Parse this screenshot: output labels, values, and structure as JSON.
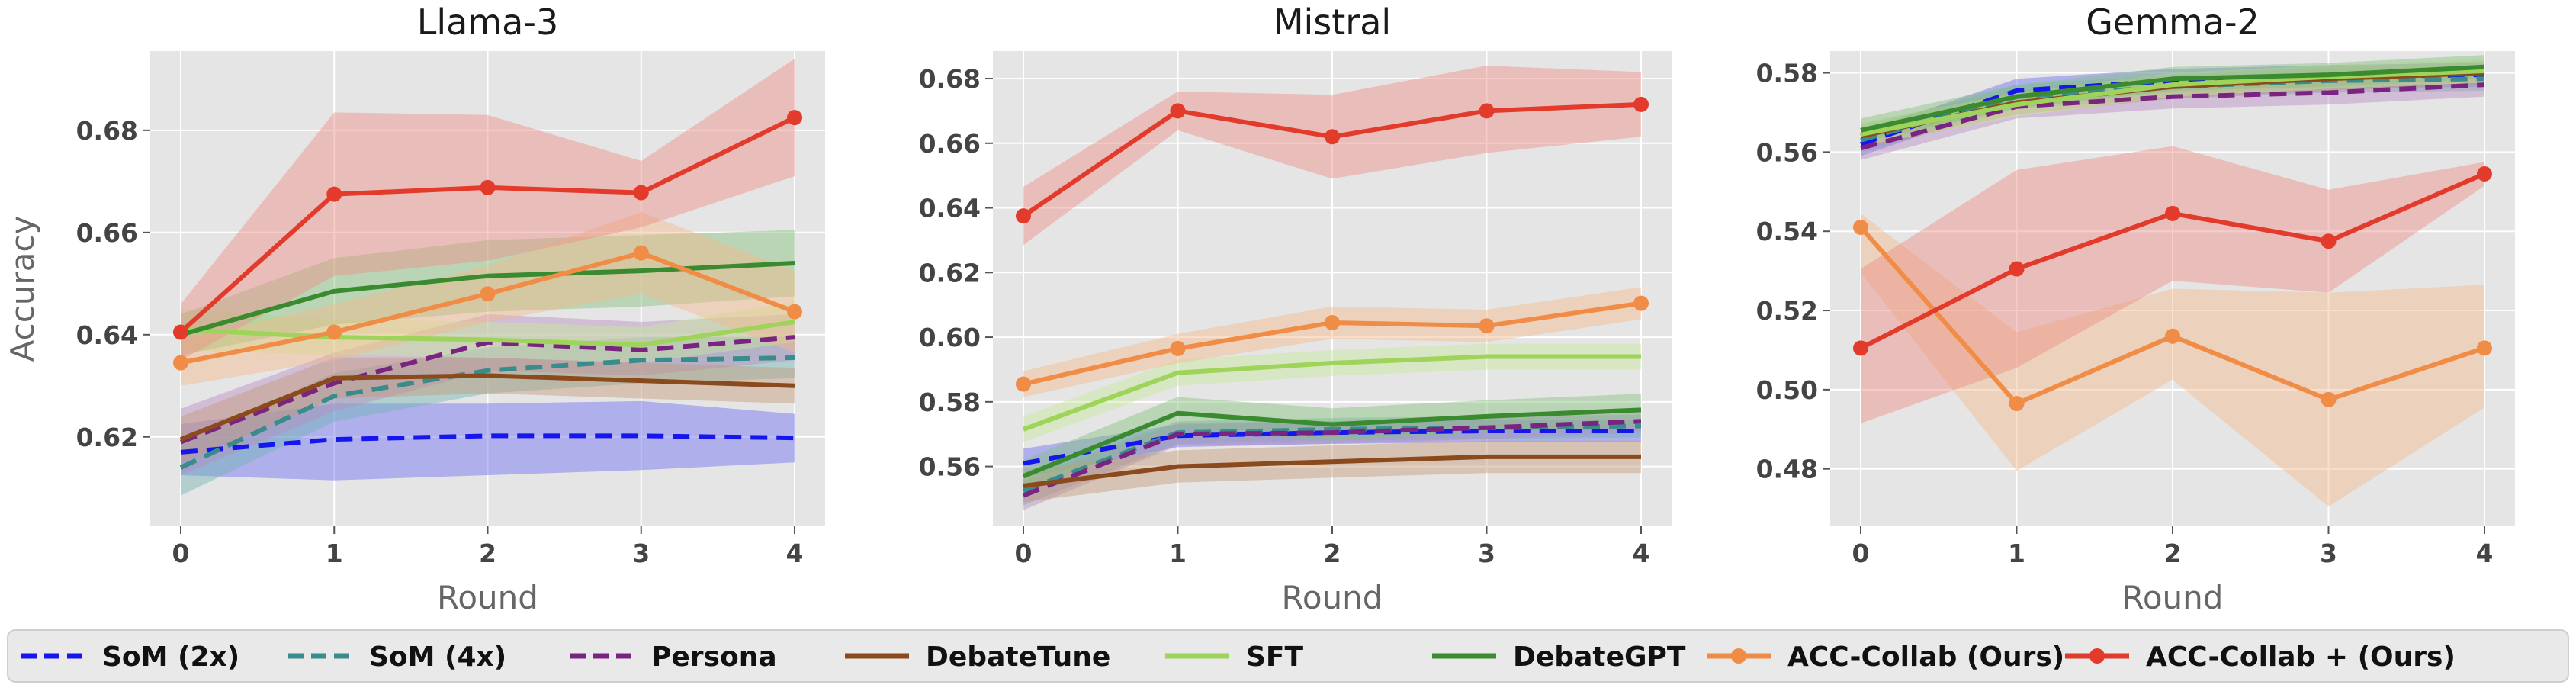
{
  "chart_data": [
    {
      "type": "line",
      "title": "Llama-3",
      "xlabel": "Round",
      "ylabel": "Accuracy",
      "x": [
        0,
        1,
        2,
        3,
        4
      ],
      "xticks": [
        "0",
        "1",
        "2",
        "3",
        "4"
      ],
      "yticks": [
        "0.62",
        "0.64",
        "0.66",
        "0.68"
      ],
      "ytick_values": [
        0.62,
        0.64,
        0.66,
        0.68
      ],
      "ylim": [
        0.6025,
        0.6955
      ],
      "grid": true,
      "series": [
        {
          "name": "SoM (2x)",
          "values": [
            0.617,
            0.6195,
            0.6202,
            0.6202,
            0.6198
          ],
          "lower": [
            0.6125,
            0.6115,
            0.6125,
            0.6135,
            0.615
          ],
          "upper": [
            0.6225,
            0.6265,
            0.6265,
            0.627,
            0.6245
          ]
        },
        {
          "name": "SoM (4x)",
          "values": [
            0.614,
            0.628,
            0.633,
            0.635,
            0.6355
          ],
          "lower": [
            0.6085,
            0.623,
            0.6285,
            0.6305,
            0.6315
          ],
          "upper": [
            0.619,
            0.6325,
            0.6375,
            0.6395,
            0.6395
          ]
        },
        {
          "name": "Persona",
          "values": [
            0.619,
            0.6305,
            0.6385,
            0.637,
            0.6395
          ],
          "lower": [
            0.6125,
            0.625,
            0.633,
            0.632,
            0.635
          ],
          "upper": [
            0.6255,
            0.6365,
            0.644,
            0.6425,
            0.644
          ]
        },
        {
          "name": "DebateTune",
          "values": [
            0.6195,
            0.6315,
            0.632,
            0.631,
            0.63
          ],
          "lower": [
            0.615,
            0.6275,
            0.6285,
            0.6275,
            0.6265
          ],
          "upper": [
            0.624,
            0.6355,
            0.6355,
            0.6345,
            0.6335
          ]
        },
        {
          "name": "SFT",
          "values": [
            0.641,
            0.6395,
            0.639,
            0.638,
            0.6425
          ],
          "lower": [
            0.637,
            0.636,
            0.6355,
            0.6345,
            0.6385
          ],
          "upper": [
            0.645,
            0.643,
            0.6425,
            0.6415,
            0.6465
          ]
        },
        {
          "name": "DebateGPT",
          "values": [
            0.64,
            0.6485,
            0.6515,
            0.6525,
            0.654
          ],
          "lower": [
            0.636,
            0.642,
            0.6445,
            0.6455,
            0.6475
          ],
          "upper": [
            0.644,
            0.655,
            0.6585,
            0.6595,
            0.6605
          ]
        },
        {
          "name": "ACC-Collab (Ours)",
          "values": [
            0.6345,
            0.6405,
            0.648,
            0.656,
            0.6445
          ],
          "lower": [
            0.63,
            0.635,
            0.6425,
            0.648,
            0.6365
          ],
          "upper": [
            0.639,
            0.646,
            0.6535,
            0.664,
            0.6525
          ]
        },
        {
          "name": "ACC-Collab + (Ours)",
          "values": [
            0.6405,
            0.6675,
            0.6688,
            0.6678,
            0.6825
          ],
          "lower": [
            0.635,
            0.6515,
            0.6545,
            0.661,
            0.671
          ],
          "upper": [
            0.646,
            0.6835,
            0.683,
            0.674,
            0.694
          ]
        }
      ]
    },
    {
      "type": "line",
      "title": "Mistral",
      "xlabel": "Round",
      "ylabel": "",
      "x": [
        0,
        1,
        2,
        3,
        4
      ],
      "xticks": [
        "0",
        "1",
        "2",
        "3",
        "4"
      ],
      "yticks": [
        "0.56",
        "0.58",
        "0.60",
        "0.62",
        "0.64",
        "0.66",
        "0.68"
      ],
      "ytick_values": [
        0.56,
        0.58,
        0.6,
        0.62,
        0.64,
        0.66,
        0.68
      ],
      "ylim": [
        0.5415,
        0.6885
      ],
      "grid": true,
      "series": [
        {
          "name": "SoM (2x)",
          "values": [
            0.561,
            0.5695,
            0.5705,
            0.571,
            0.571
          ],
          "lower": [
            0.5565,
            0.566,
            0.567,
            0.5675,
            0.5675
          ],
          "upper": [
            0.5655,
            0.573,
            0.574,
            0.5745,
            0.5745
          ]
        },
        {
          "name": "SoM (4x)",
          "values": [
            0.5525,
            0.5705,
            0.5715,
            0.572,
            0.5725
          ],
          "lower": [
            0.548,
            0.567,
            0.568,
            0.5685,
            0.569
          ],
          "upper": [
            0.557,
            0.574,
            0.575,
            0.5755,
            0.576
          ]
        },
        {
          "name": "Persona",
          "values": [
            0.551,
            0.57,
            0.5705,
            0.572,
            0.574
          ],
          "lower": [
            0.5465,
            0.5665,
            0.567,
            0.5685,
            0.5705
          ],
          "upper": [
            0.5555,
            0.5735,
            0.574,
            0.5755,
            0.5775
          ]
        },
        {
          "name": "DebateTune",
          "values": [
            0.554,
            0.56,
            0.5615,
            0.563,
            0.563
          ],
          "lower": [
            0.549,
            0.555,
            0.5565,
            0.558,
            0.558
          ],
          "upper": [
            0.559,
            0.565,
            0.5665,
            0.568,
            0.568
          ]
        },
        {
          "name": "SFT",
          "values": [
            0.5715,
            0.589,
            0.592,
            0.594,
            0.594
          ],
          "lower": [
            0.5675,
            0.585,
            0.588,
            0.59,
            0.59
          ],
          "upper": [
            0.5755,
            0.593,
            0.596,
            0.598,
            0.598
          ]
        },
        {
          "name": "DebateGPT",
          "values": [
            0.557,
            0.5765,
            0.573,
            0.5755,
            0.5775
          ],
          "lower": [
            0.552,
            0.5715,
            0.568,
            0.5705,
            0.5725
          ],
          "upper": [
            0.562,
            0.5815,
            0.578,
            0.5805,
            0.5825
          ]
        },
        {
          "name": "ACC-Collab (Ours)",
          "values": [
            0.5855,
            0.5965,
            0.6045,
            0.6035,
            0.6105
          ],
          "lower": [
            0.5815,
            0.592,
            0.5995,
            0.5985,
            0.6055
          ],
          "upper": [
            0.5895,
            0.601,
            0.6095,
            0.6085,
            0.6155
          ]
        },
        {
          "name": "ACC-Collab + (Ours)",
          "values": [
            0.6375,
            0.67,
            0.662,
            0.67,
            0.672
          ],
          "lower": [
            0.6285,
            0.664,
            0.649,
            0.657,
            0.662
          ],
          "upper": [
            0.6465,
            0.676,
            0.675,
            0.684,
            0.682
          ]
        }
      ]
    },
    {
      "type": "line",
      "title": "Gemma-2",
      "xlabel": "Round",
      "ylabel": "",
      "x": [
        0,
        1,
        2,
        3,
        4
      ],
      "xticks": [
        "0",
        "1",
        "2",
        "3",
        "4"
      ],
      "yticks": [
        "0.48",
        "0.50",
        "0.52",
        "0.54",
        "0.56",
        "0.58"
      ],
      "ytick_values": [
        0.48,
        0.5,
        0.52,
        0.54,
        0.56,
        0.58
      ],
      "ylim": [
        0.4655,
        0.5855
      ],
      "grid": true,
      "series": [
        {
          "name": "SoM (2x)",
          "values": [
            0.562,
            0.5755,
            0.578,
            0.579,
            0.5795
          ],
          "lower": [
            0.559,
            0.5725,
            0.575,
            0.576,
            0.5765
          ],
          "upper": [
            0.565,
            0.5785,
            0.581,
            0.582,
            0.5825
          ]
        },
        {
          "name": "SoM (4x)",
          "values": [
            0.563,
            0.574,
            0.5765,
            0.578,
            0.5785
          ],
          "lower": [
            0.56,
            0.571,
            0.5735,
            0.575,
            0.5755
          ],
          "upper": [
            0.566,
            0.577,
            0.5795,
            0.581,
            0.5815
          ]
        },
        {
          "name": "Persona",
          "values": [
            0.561,
            0.5715,
            0.574,
            0.575,
            0.577
          ],
          "lower": [
            0.558,
            0.5685,
            0.571,
            0.572,
            0.574
          ],
          "upper": [
            0.564,
            0.5745,
            0.577,
            0.578,
            0.58
          ]
        },
        {
          "name": "DebateTune",
          "values": [
            0.564,
            0.5725,
            0.5765,
            0.5785,
            0.58
          ],
          "lower": [
            0.561,
            0.5695,
            0.5735,
            0.5755,
            0.577
          ],
          "upper": [
            0.567,
            0.5755,
            0.5795,
            0.5815,
            0.583
          ]
        },
        {
          "name": "SFT",
          "values": [
            0.5645,
            0.572,
            0.577,
            0.579,
            0.5805
          ],
          "lower": [
            0.5615,
            0.569,
            0.574,
            0.576,
            0.5775
          ],
          "upper": [
            0.5675,
            0.575,
            0.58,
            0.582,
            0.5835
          ]
        },
        {
          "name": "DebateGPT",
          "values": [
            0.5655,
            0.574,
            0.5785,
            0.5795,
            0.5815
          ],
          "lower": [
            0.5625,
            0.571,
            0.5755,
            0.5765,
            0.5785
          ],
          "upper": [
            0.5685,
            0.577,
            0.5815,
            0.5825,
            0.5845
          ]
        },
        {
          "name": "ACC-Collab (Ours)",
          "values": [
            0.541,
            0.4965,
            0.5135,
            0.4975,
            0.5105
          ],
          "lower": [
            0.5295,
            0.4795,
            0.5025,
            0.4705,
            0.4955
          ],
          "upper": [
            0.5445,
            0.5145,
            0.5255,
            0.5245,
            0.5265
          ]
        },
        {
          "name": "ACC-Collab + (Ours)",
          "values": [
            0.5105,
            0.5305,
            0.5445,
            0.5375,
            0.5545
          ],
          "lower": [
            0.4915,
            0.5055,
            0.5275,
            0.5245,
            0.5515
          ],
          "upper": [
            0.5305,
            0.5555,
            0.5615,
            0.5505,
            0.5575
          ]
        }
      ]
    }
  ],
  "legend": {
    "placement": "bottom",
    "items": [
      {
        "label": "SoM (2x)",
        "color": "#1515ee",
        "style": "dashed",
        "marker": false
      },
      {
        "label": "SoM (4x)",
        "color": "#3a8c8c",
        "style": "dashed",
        "marker": false
      },
      {
        "label": "Persona",
        "color": "#7a2482",
        "style": "dashed",
        "marker": false
      },
      {
        "label": "DebateTune",
        "color": "#8b4a1c",
        "style": "solid",
        "marker": false
      },
      {
        "label": "SFT",
        "color": "#9fd45a",
        "style": "solid",
        "marker": false
      },
      {
        "label": "DebateGPT",
        "color": "#3a8a30",
        "style": "solid",
        "marker": false
      },
      {
        "label": "ACC-Collab (Ours)",
        "color": "#f08c45",
        "style": "solid",
        "marker": true
      },
      {
        "label": "ACC-Collab + (Ours)",
        "color": "#e23a2b",
        "style": "solid",
        "marker": true
      }
    ]
  },
  "band_colors": {
    "SoM (2x)": "#6c6cf2",
    "SoM (4x)": "#70b4b4",
    "Persona": "#b78cc0",
    "DebateTune": "#c49a78",
    "SFT": "#c6e89a",
    "DebateGPT": "#84c07c",
    "ACC-Collab (Ours)": "#f4b88a",
    "ACC-Collab + (Ours)": "#ee8e86"
  }
}
